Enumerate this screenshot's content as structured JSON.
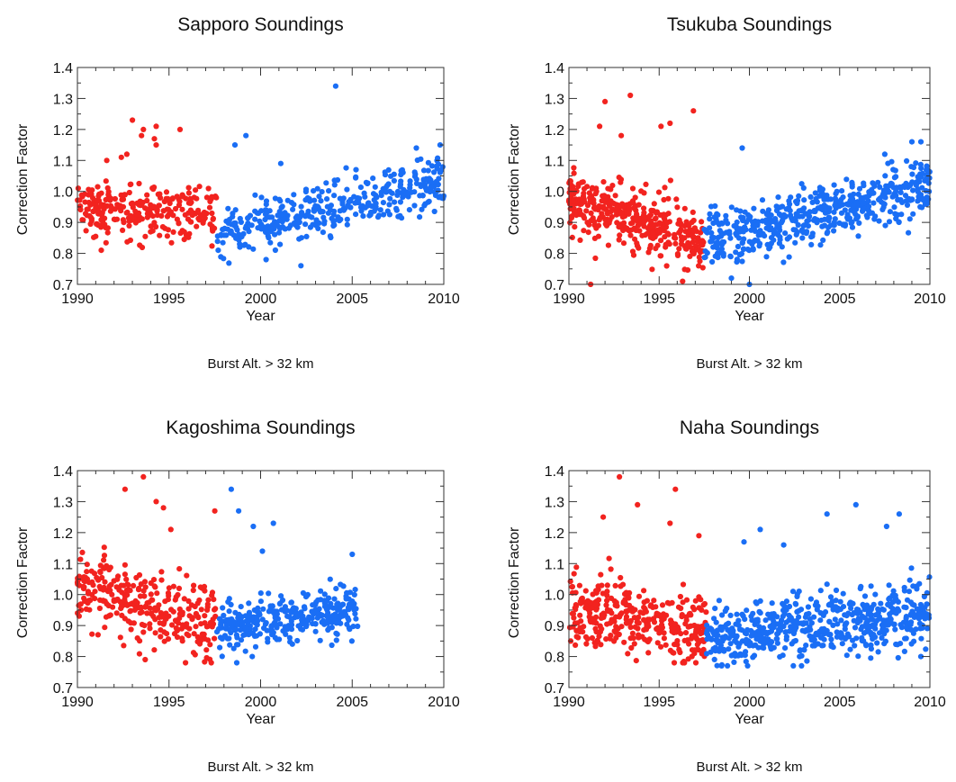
{
  "colors": {
    "early": "#f2231f",
    "late": "#1a6ef5",
    "axis": "#333333"
  },
  "chart_data": [
    {
      "type": "scatter",
      "title": "Sapporo Soundings",
      "xlabel": "Year",
      "ylabel": "Correction Factor",
      "note": "Burst Alt. > 32 km",
      "xlim": [
        1990,
        2010
      ],
      "ylim": [
        0.7,
        1.4
      ],
      "xticks": [
        "1990",
        "1995",
        "2000",
        "2005",
        "2010"
      ],
      "yticks": [
        "0.7",
        "0.8",
        "0.9",
        "1.0",
        "1.1",
        "1.2",
        "1.3",
        "1.4"
      ],
      "series": [
        {
          "period": [
            1990.0,
            1997.6
          ],
          "color": "#f2231f",
          "count": 260,
          "mean_start": 0.94,
          "mean_end": 0.93,
          "spread": 0.045,
          "min": 0.8,
          "max": 1.23,
          "points": [
            [
              1993.0,
              1.23
            ],
            [
              1993.6,
              1.2
            ],
            [
              1994.3,
              1.21
            ],
            [
              1995.6,
              1.2
            ],
            [
              1993.5,
              1.18
            ],
            [
              1994.2,
              1.17
            ],
            [
              1994.3,
              1.15
            ],
            [
              1992.7,
              1.12
            ],
            [
              1992.4,
              1.11
            ],
            [
              1991.6,
              1.1
            ],
            [
              1991.3,
              0.81
            ]
          ]
        },
        {
          "period": [
            1997.6,
            2010.0
          ],
          "color": "#1a6ef5",
          "count": 390,
          "mean_start": 0.86,
          "mean_end": 1.03,
          "spread": 0.04,
          "min": 0.76,
          "max": 1.34,
          "points": [
            [
              2004.1,
              1.34
            ],
            [
              1999.2,
              1.18
            ],
            [
              1998.6,
              1.15
            ],
            [
              2001.1,
              1.09
            ],
            [
              2008.5,
              1.14
            ],
            [
              2009.8,
              1.15
            ],
            [
              2002.2,
              0.76
            ],
            [
              2000.3,
              0.78
            ]
          ]
        }
      ]
    },
    {
      "type": "scatter",
      "title": "Tsukuba Soundings",
      "xlabel": "Year",
      "ylabel": "Correction Factor",
      "note": "Burst Alt. > 32 km",
      "xlim": [
        1990,
        2010
      ],
      "ylim": [
        0.7,
        1.4
      ],
      "xticks": [
        "1990",
        "1995",
        "2000",
        "2005",
        "2010"
      ],
      "yticks": [
        "0.7",
        "0.8",
        "0.9",
        "1.0",
        "1.1",
        "1.2",
        "1.3",
        "1.4"
      ],
      "series": [
        {
          "period": [
            1990.0,
            1997.5
          ],
          "color": "#f2231f",
          "count": 380,
          "mean_start": 0.98,
          "mean_end": 0.84,
          "spread": 0.055,
          "min": 0.7,
          "max": 1.31,
          "points": [
            [
              1992.0,
              1.29
            ],
            [
              1993.4,
              1.31
            ],
            [
              1996.9,
              1.26
            ],
            [
              1995.6,
              1.22
            ],
            [
              1995.1,
              1.21
            ],
            [
              1991.7,
              1.21
            ],
            [
              1992.9,
              1.18
            ],
            [
              1991.2,
              0.7
            ],
            [
              1996.3,
              0.71
            ]
          ]
        },
        {
          "period": [
            1997.5,
            2010.0
          ],
          "color": "#1a6ef5",
          "count": 520,
          "mean_start": 0.84,
          "mean_end": 1.02,
          "spread": 0.045,
          "min": 0.7,
          "max": 1.16,
          "points": [
            [
              1999.6,
              1.14
            ],
            [
              2009.5,
              1.16
            ],
            [
              2009.0,
              1.16
            ],
            [
              2007.5,
              1.12
            ],
            [
              1999.0,
              0.72
            ],
            [
              2000.0,
              0.7
            ]
          ]
        }
      ]
    },
    {
      "type": "scatter",
      "title": "Kagoshima Soundings",
      "xlabel": "Year",
      "ylabel": "Correction Factor",
      "note": "Burst Alt. > 32 km",
      "xlim": [
        1990,
        2010
      ],
      "ylim": [
        0.7,
        1.4
      ],
      "xticks": [
        "1990",
        "1995",
        "2000",
        "2005",
        "2010"
      ],
      "yticks": [
        "0.7",
        "0.8",
        "0.9",
        "1.0",
        "1.1",
        "1.2",
        "1.3",
        "1.4"
      ],
      "series": [
        {
          "period": [
            1990.0,
            1997.6
          ],
          "color": "#f2231f",
          "count": 300,
          "mean_start": 1.03,
          "mean_end": 0.89,
          "spread": 0.06,
          "min": 0.78,
          "max": 1.38,
          "points": [
            [
              1993.6,
              1.38
            ],
            [
              1992.6,
              1.34
            ],
            [
              1994.3,
              1.3
            ],
            [
              1994.7,
              1.28
            ],
            [
              1997.5,
              1.27
            ],
            [
              1995.1,
              1.21
            ],
            [
              1995.9,
              0.78
            ],
            [
              1993.7,
              0.79
            ],
            [
              1990.2,
              0.95
            ]
          ]
        },
        {
          "period": [
            1997.6,
            2005.3
          ],
          "color": "#1a6ef5",
          "count": 330,
          "mean_start": 0.89,
          "mean_end": 0.96,
          "spread": 0.04,
          "min": 0.78,
          "max": 1.34,
          "points": [
            [
              1998.4,
              1.34
            ],
            [
              1998.8,
              1.27
            ],
            [
              1999.6,
              1.22
            ],
            [
              2000.7,
              1.23
            ],
            [
              2000.1,
              1.14
            ],
            [
              2005.0,
              1.13
            ],
            [
              1998.7,
              0.78
            ]
          ]
        }
      ]
    },
    {
      "type": "scatter",
      "title": "Naha Soundings",
      "xlabel": "Year",
      "ylabel": "Correction Factor",
      "note": "Burst Alt. > 32 km",
      "xlim": [
        1990,
        2010
      ],
      "ylim": [
        0.7,
        1.4
      ],
      "xticks": [
        "1990",
        "1995",
        "2000",
        "2005",
        "2010"
      ],
      "yticks": [
        "0.7",
        "0.8",
        "0.9",
        "1.0",
        "1.1",
        "1.2",
        "1.3",
        "1.4"
      ],
      "series": [
        {
          "period": [
            1990.0,
            1997.6
          ],
          "color": "#f2231f",
          "count": 330,
          "mean_start": 0.97,
          "mean_end": 0.87,
          "spread": 0.055,
          "min": 0.78,
          "max": 1.38,
          "points": [
            [
              1992.8,
              1.38
            ],
            [
              1995.9,
              1.34
            ],
            [
              1993.8,
              1.29
            ],
            [
              1991.9,
              1.25
            ],
            [
              1995.6,
              1.23
            ],
            [
              1997.2,
              1.19
            ],
            [
              1996.4,
              0.78
            ],
            [
              1990.1,
              0.85
            ]
          ]
        },
        {
          "period": [
            1997.6,
            2010.0
          ],
          "color": "#1a6ef5",
          "count": 560,
          "mean_start": 0.86,
          "mean_end": 0.93,
          "spread": 0.05,
          "min": 0.77,
          "max": 1.29,
          "points": [
            [
              2005.9,
              1.29
            ],
            [
              2004.3,
              1.26
            ],
            [
              2008.3,
              1.26
            ],
            [
              2007.6,
              1.22
            ],
            [
              2000.6,
              1.21
            ],
            [
              1999.7,
              1.17
            ],
            [
              2001.9,
              1.16
            ],
            [
              1999.9,
              0.77
            ],
            [
              2009.5,
              0.8
            ]
          ]
        }
      ]
    }
  ]
}
